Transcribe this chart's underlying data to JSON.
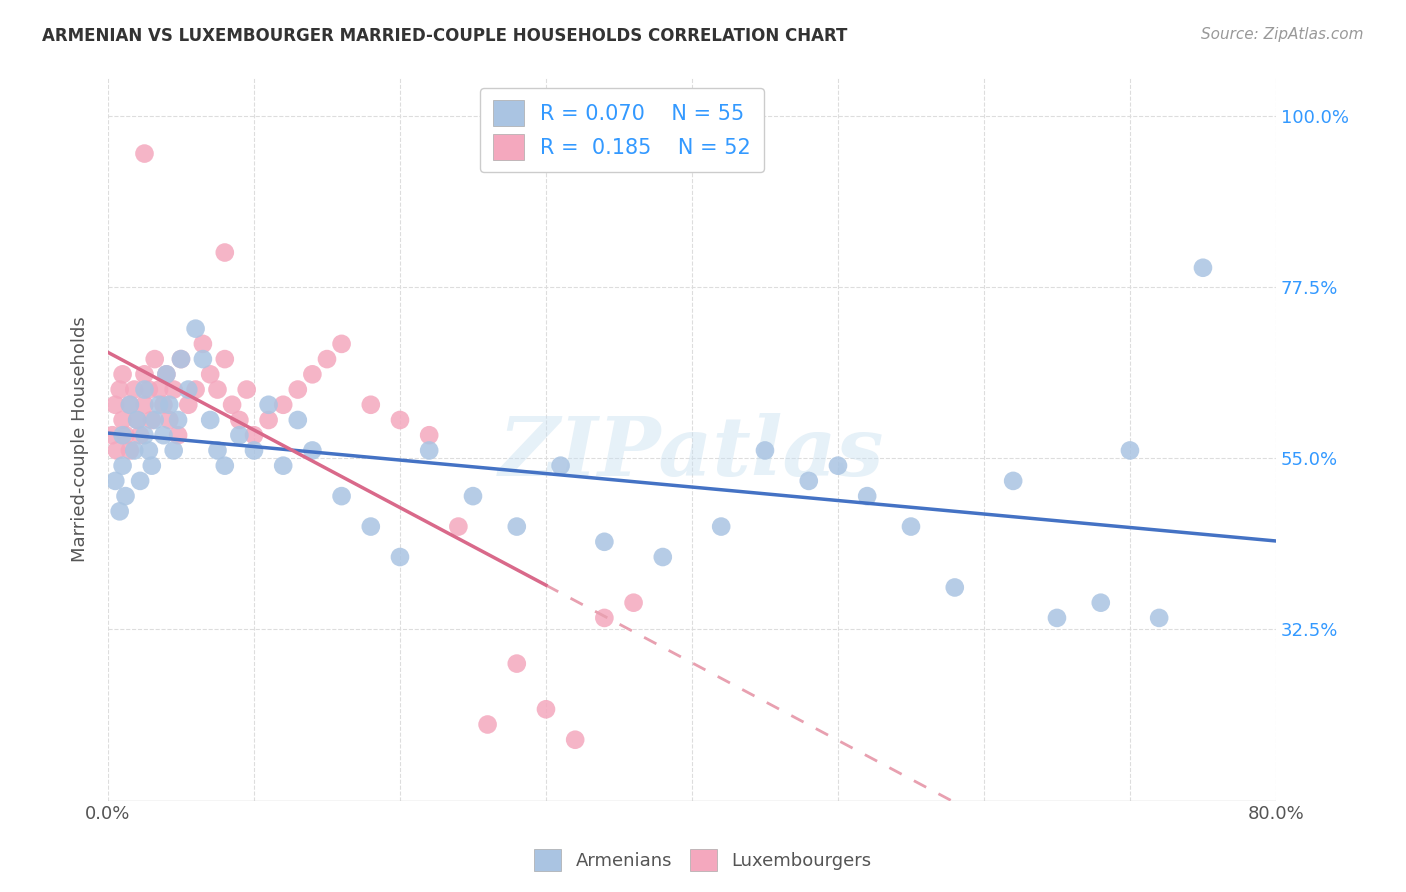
{
  "title": "ARMENIAN VS LUXEMBOURGER MARRIED-COUPLE HOUSEHOLDS CORRELATION CHART",
  "source": "Source: ZipAtlas.com",
  "ylabel": "Married-couple Households",
  "xlim": [
    0.0,
    0.8
  ],
  "ylim": [
    0.1,
    1.05
  ],
  "ytick_values": [
    0.325,
    0.55,
    0.775,
    1.0
  ],
  "ytick_labels": [
    "32.5%",
    "55.0%",
    "77.5%",
    "100.0%"
  ],
  "xtick_values": [
    0.0,
    0.1,
    0.2,
    0.3,
    0.4,
    0.5,
    0.6,
    0.7,
    0.8
  ],
  "xtick_labels": [
    "0.0%",
    "",
    "",
    "",
    "",
    "",
    "",
    "",
    "80.0%"
  ],
  "armenian_R": 0.07,
  "armenian_N": 55,
  "luxembourger_R": 0.185,
  "luxembourger_N": 52,
  "armenian_color": "#aac4e2",
  "luxembourger_color": "#f4a8be",
  "trend_armenian_color": "#4472c4",
  "trend_luxembourger_solid_color": "#d9698a",
  "trend_luxembourger_dashed_color": "#e8a0b0",
  "watermark": "ZIPatlas",
  "background_color": "#ffffff",
  "armenian_x": [
    0.005,
    0.008,
    0.01,
    0.01,
    0.012,
    0.015,
    0.018,
    0.02,
    0.022,
    0.025,
    0.025,
    0.028,
    0.03,
    0.032,
    0.035,
    0.038,
    0.04,
    0.042,
    0.045,
    0.048,
    0.05,
    0.055,
    0.06,
    0.065,
    0.07,
    0.075,
    0.08,
    0.09,
    0.1,
    0.11,
    0.12,
    0.13,
    0.14,
    0.16,
    0.18,
    0.2,
    0.22,
    0.25,
    0.28,
    0.31,
    0.34,
    0.38,
    0.42,
    0.45,
    0.48,
    0.5,
    0.52,
    0.55,
    0.58,
    0.62,
    0.65,
    0.68,
    0.7,
    0.72,
    0.75
  ],
  "armenian_y": [
    0.52,
    0.48,
    0.54,
    0.58,
    0.5,
    0.62,
    0.56,
    0.6,
    0.52,
    0.64,
    0.58,
    0.56,
    0.54,
    0.6,
    0.62,
    0.58,
    0.66,
    0.62,
    0.56,
    0.6,
    0.68,
    0.64,
    0.72,
    0.68,
    0.6,
    0.56,
    0.54,
    0.58,
    0.56,
    0.62,
    0.54,
    0.6,
    0.56,
    0.5,
    0.46,
    0.42,
    0.56,
    0.5,
    0.46,
    0.54,
    0.44,
    0.42,
    0.46,
    0.56,
    0.52,
    0.54,
    0.5,
    0.46,
    0.38,
    0.52,
    0.34,
    0.36,
    0.56,
    0.34,
    0.8
  ],
  "luxembourger_x": [
    0.003,
    0.005,
    0.006,
    0.008,
    0.01,
    0.01,
    0.012,
    0.015,
    0.015,
    0.018,
    0.02,
    0.022,
    0.025,
    0.025,
    0.028,
    0.03,
    0.032,
    0.035,
    0.038,
    0.04,
    0.042,
    0.045,
    0.048,
    0.05,
    0.055,
    0.06,
    0.065,
    0.07,
    0.075,
    0.08,
    0.085,
    0.09,
    0.095,
    0.1,
    0.11,
    0.12,
    0.13,
    0.14,
    0.15,
    0.16,
    0.18,
    0.2,
    0.22,
    0.24,
    0.26,
    0.28,
    0.3,
    0.32,
    0.34,
    0.36,
    0.025,
    0.08
  ],
  "luxembourger_y": [
    0.58,
    0.62,
    0.56,
    0.64,
    0.6,
    0.66,
    0.58,
    0.62,
    0.56,
    0.64,
    0.6,
    0.58,
    0.62,
    0.66,
    0.64,
    0.6,
    0.68,
    0.64,
    0.62,
    0.66,
    0.6,
    0.64,
    0.58,
    0.68,
    0.62,
    0.64,
    0.7,
    0.66,
    0.64,
    0.68,
    0.62,
    0.6,
    0.64,
    0.58,
    0.6,
    0.62,
    0.64,
    0.66,
    0.68,
    0.7,
    0.62,
    0.6,
    0.58,
    0.46,
    0.2,
    0.28,
    0.22,
    0.18,
    0.34,
    0.36,
    0.95,
    0.82
  ]
}
